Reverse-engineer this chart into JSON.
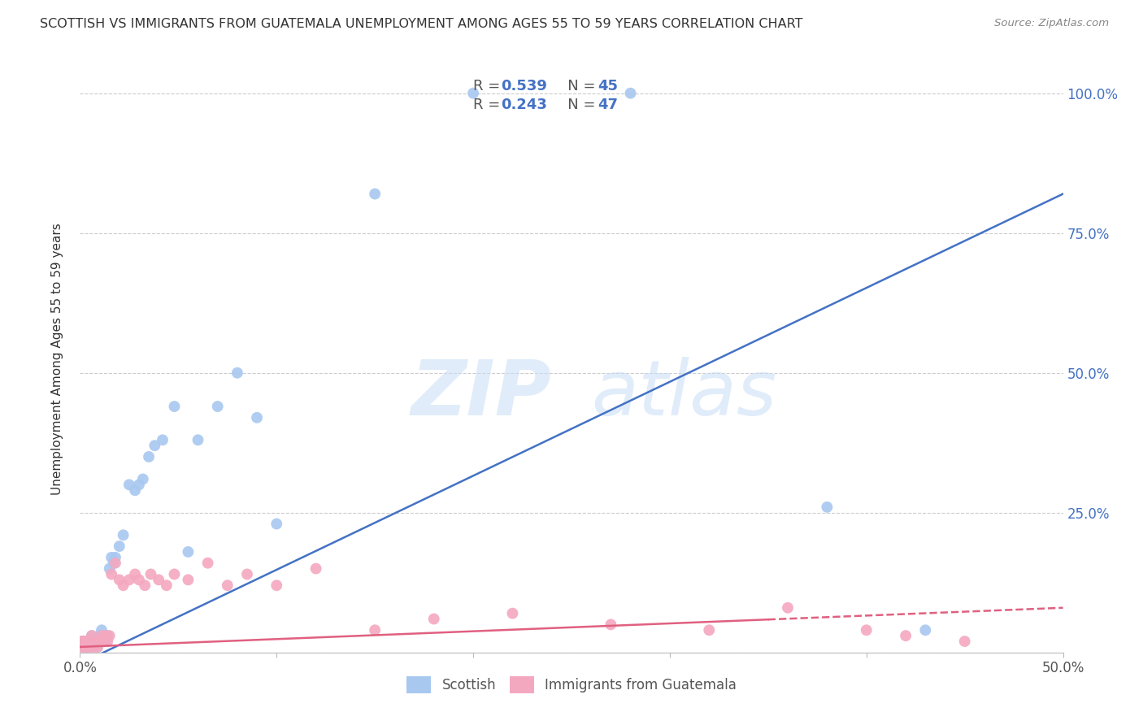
{
  "title": "SCOTTISH VS IMMIGRANTS FROM GUATEMALA UNEMPLOYMENT AMONG AGES 55 TO 59 YEARS CORRELATION CHART",
  "source": "Source: ZipAtlas.com",
  "ylabel": "Unemployment Among Ages 55 to 59 years",
  "xlim": [
    0.0,
    0.5
  ],
  "ylim": [
    0.0,
    1.05
  ],
  "xticks": [
    0.0,
    0.1,
    0.2,
    0.3,
    0.4,
    0.5
  ],
  "xticklabels": [
    "0.0%",
    "",
    "",
    "",
    "",
    "50.0%"
  ],
  "yticks": [
    0.0,
    0.25,
    0.5,
    0.75,
    1.0
  ],
  "yticklabels": [
    "",
    "25.0%",
    "50.0%",
    "75.0%",
    "100.0%"
  ],
  "blue_color": "#a8c8f0",
  "pink_color": "#f4a8c0",
  "blue_line_color": "#4472c4",
  "pink_line_color": "#e06080",
  "blue_R": 0.539,
  "blue_N": 45,
  "pink_R": 0.243,
  "pink_N": 47,
  "legend_label_blue": "Scottish",
  "legend_label_pink": "Immigrants from Guatemala",
  "watermark_zip": "ZIP",
  "watermark_atlas": "atlas",
  "blue_line_x0": 0.0,
  "blue_line_y0": -0.02,
  "blue_line_x1": 0.5,
  "blue_line_y1": 0.82,
  "pink_line_x0": 0.0,
  "pink_line_y0": 0.01,
  "pink_line_x1": 0.5,
  "pink_line_y1": 0.08,
  "scottish_x": [
    0.001,
    0.001,
    0.002,
    0.002,
    0.003,
    0.003,
    0.004,
    0.004,
    0.005,
    0.005,
    0.006,
    0.006,
    0.007,
    0.008,
    0.009,
    0.01,
    0.011,
    0.012,
    0.013,
    0.014,
    0.015,
    0.016,
    0.017,
    0.018,
    0.02,
    0.022,
    0.025,
    0.028,
    0.03,
    0.032,
    0.035,
    0.038,
    0.042,
    0.048,
    0.055,
    0.06,
    0.07,
    0.08,
    0.09,
    0.1,
    0.15,
    0.2,
    0.28,
    0.38,
    0.43
  ],
  "scottish_y": [
    0.01,
    0.02,
    0.01,
    0.02,
    0.01,
    0.02,
    0.01,
    0.02,
    0.01,
    0.02,
    0.03,
    0.02,
    0.01,
    0.02,
    0.01,
    0.03,
    0.04,
    0.03,
    0.02,
    0.03,
    0.15,
    0.17,
    0.16,
    0.17,
    0.19,
    0.21,
    0.3,
    0.29,
    0.3,
    0.31,
    0.35,
    0.37,
    0.38,
    0.44,
    0.18,
    0.38,
    0.44,
    0.5,
    0.42,
    0.23,
    0.82,
    1.0,
    1.0,
    0.26,
    0.04
  ],
  "guatemala_x": [
    0.001,
    0.001,
    0.002,
    0.002,
    0.003,
    0.003,
    0.004,
    0.004,
    0.005,
    0.005,
    0.006,
    0.007,
    0.008,
    0.009,
    0.01,
    0.011,
    0.012,
    0.013,
    0.014,
    0.015,
    0.016,
    0.018,
    0.02,
    0.022,
    0.025,
    0.028,
    0.03,
    0.033,
    0.036,
    0.04,
    0.044,
    0.048,
    0.055,
    0.065,
    0.075,
    0.085,
    0.1,
    0.12,
    0.15,
    0.18,
    0.22,
    0.27,
    0.32,
    0.36,
    0.4,
    0.42,
    0.45
  ],
  "guatemala_y": [
    0.01,
    0.02,
    0.01,
    0.02,
    0.01,
    0.02,
    0.01,
    0.02,
    0.01,
    0.02,
    0.03,
    0.01,
    0.02,
    0.01,
    0.02,
    0.03,
    0.02,
    0.03,
    0.02,
    0.03,
    0.14,
    0.16,
    0.13,
    0.12,
    0.13,
    0.14,
    0.13,
    0.12,
    0.14,
    0.13,
    0.12,
    0.14,
    0.13,
    0.16,
    0.12,
    0.14,
    0.12,
    0.15,
    0.04,
    0.06,
    0.07,
    0.05,
    0.04,
    0.08,
    0.04,
    0.03,
    0.02
  ]
}
